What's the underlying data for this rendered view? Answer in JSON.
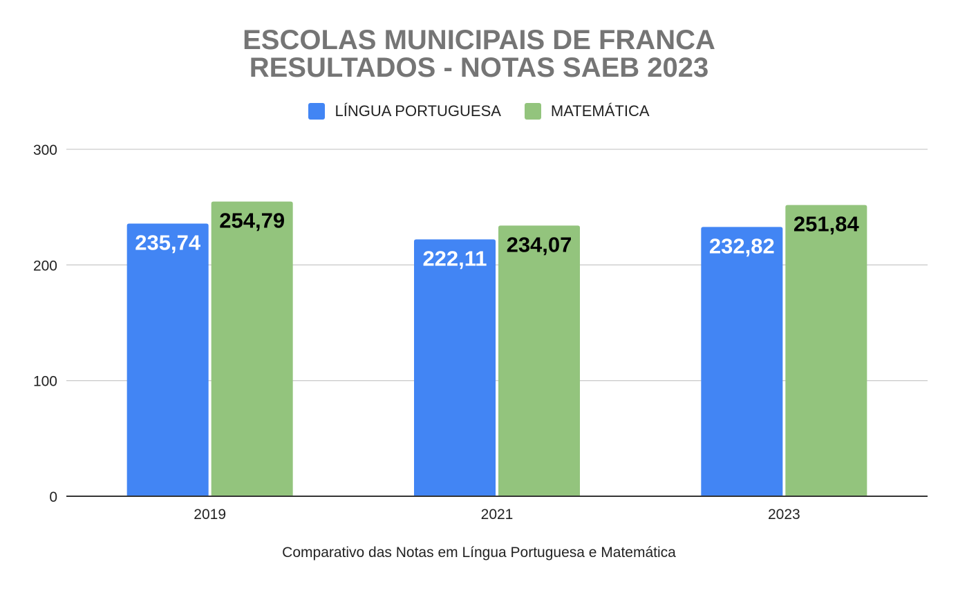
{
  "chart_data": {
    "type": "bar",
    "title_lines": [
      "ESCOLAS MUNICIPAIS DE FRANCA",
      "RESULTADOS - NOTAS SAEB 2023"
    ],
    "categories": [
      "2019",
      "2021",
      "2023"
    ],
    "series": [
      {
        "name": "LÍNGUA PORTUGUESA",
        "color": "#4285f4",
        "label_color": "#ffffff",
        "values": [
          235.74,
          222.11,
          232.82
        ],
        "labels": [
          "235,74",
          "222,11",
          "232,82"
        ]
      },
      {
        "name": "MATEMÁTICA",
        "color": "#93c47d",
        "label_color": "#000000",
        "values": [
          254.79,
          234.07,
          251.84
        ],
        "labels": [
          "254,79",
          "234,07",
          "251,84"
        ]
      }
    ],
    "xlabel": "Comparativo das Notas em Língua Portuguesa e Matemática",
    "ylabel": "",
    "ylim": [
      0,
      300
    ],
    "yticks": [
      0,
      100,
      200,
      300
    ],
    "grid": true,
    "legend_position": "top-center"
  }
}
